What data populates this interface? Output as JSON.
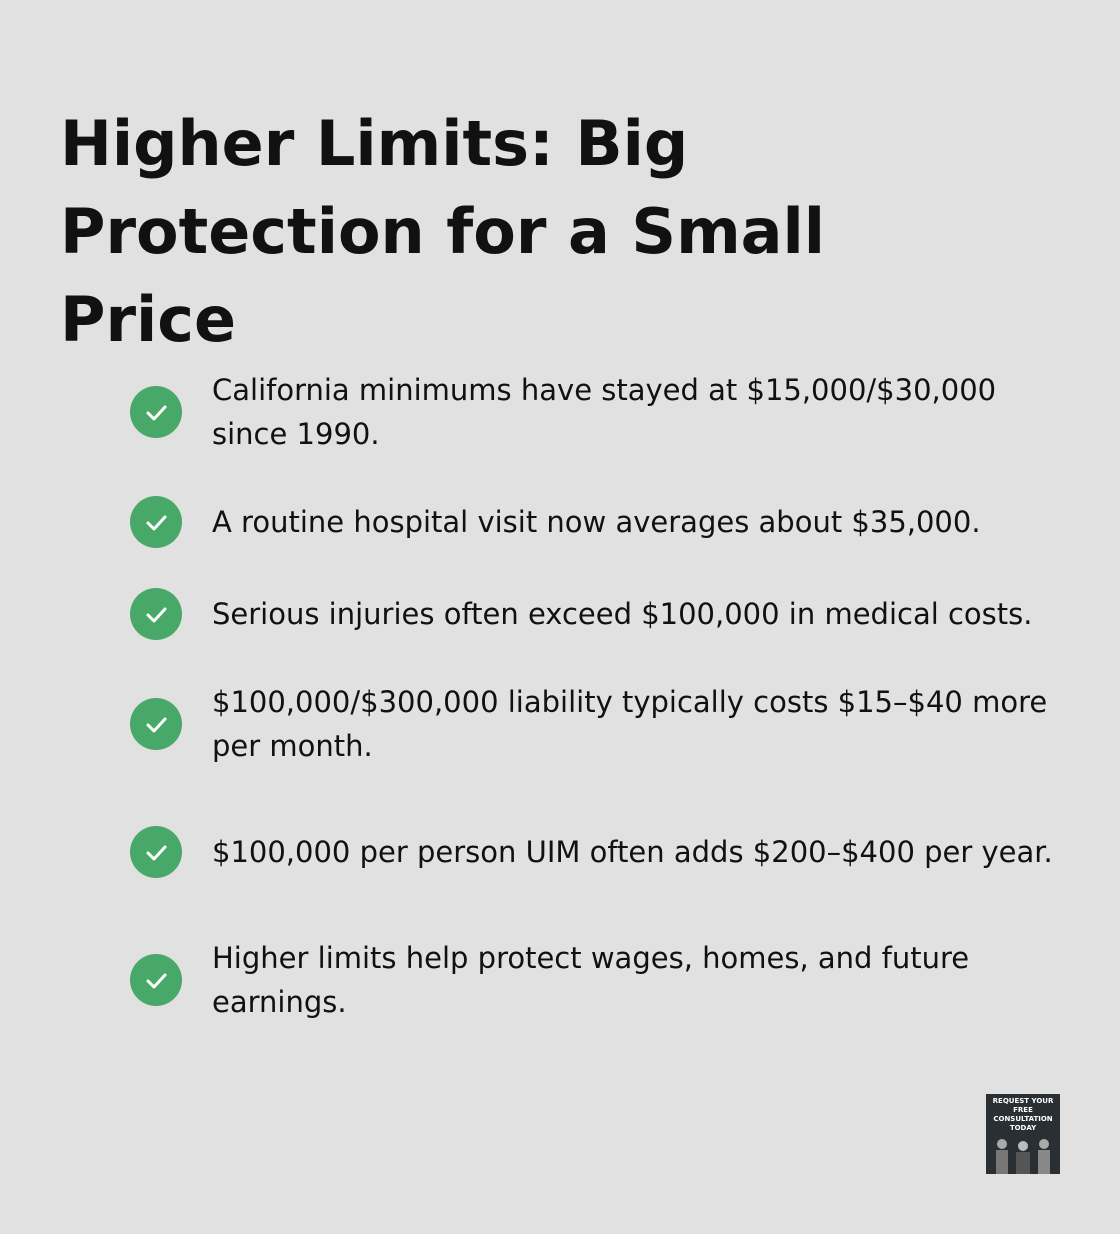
{
  "header": {
    "title": "Higher Limits: Big Protection for a Small Price"
  },
  "items": [
    "California minimums have stayed at $15,000/$30,000 since 1990.",
    "A routine hospital visit now averages about $35,000.",
    "Serious injuries often exceed $100,000 in medical costs.",
    "$100,000/$300,000 liability typically costs $15–$40 more per month.",
    "$100,000 per person UIM often adds $200–$400 per year.",
    "Higher limits help protect wages, homes, and future earnings."
  ],
  "badge": {
    "text": "REQUEST YOUR FREE CONSULTATION TODAY"
  }
}
